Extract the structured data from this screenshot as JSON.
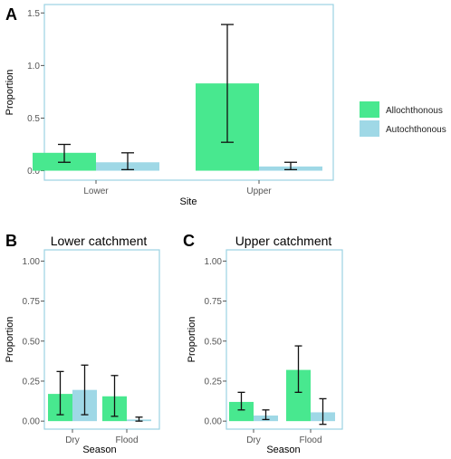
{
  "colors": {
    "allochthonous": "#48e88f",
    "autochthonous": "#9fd8e6",
    "frame": "#9bd3e2",
    "errorbar": "#111111"
  },
  "legend": {
    "items": [
      {
        "label": "Allochthonous",
        "color": "#48e88f"
      },
      {
        "label": "Autochthonous",
        "color": "#9fd8e6"
      }
    ]
  },
  "chart_data": [
    {
      "panel": "A",
      "type": "bar",
      "title": "",
      "xlabel": "Site",
      "ylabel": "Proportion",
      "ylim": [
        -0.09,
        1.58
      ],
      "yticks": [
        0.0,
        0.5,
        1.0,
        1.5
      ],
      "ytick_labels": [
        "0.0",
        "0.5",
        "1.0",
        "1.5"
      ],
      "categories": [
        "Lower",
        "Upper"
      ],
      "series": [
        {
          "name": "Allochthonous",
          "values": [
            0.17,
            0.83
          ],
          "err_low": [
            0.08,
            0.27
          ],
          "err_high": [
            0.25,
            1.39
          ]
        },
        {
          "name": "Autochthonous",
          "values": [
            0.08,
            0.04
          ],
          "err_low": [
            0.01,
            0.01
          ],
          "err_high": [
            0.17,
            0.08
          ]
        }
      ],
      "grid": false,
      "legend_position": "right"
    },
    {
      "panel": "B",
      "type": "bar",
      "title": "Lower catchment",
      "xlabel": "Season",
      "ylabel": "Proportion",
      "ylim": [
        -0.05,
        1.07
      ],
      "yticks": [
        0.0,
        0.25,
        0.5,
        0.75,
        1.0
      ],
      "ytick_labels": [
        "0.00",
        "0.25",
        "0.50",
        "0.75",
        "1.00"
      ],
      "categories": [
        "Dry",
        "Flood"
      ],
      "series": [
        {
          "name": "Allochthonous",
          "values": [
            0.17,
            0.155
          ],
          "err_low": [
            0.04,
            0.03
          ],
          "err_high": [
            0.31,
            0.285
          ]
        },
        {
          "name": "Autochthonous",
          "values": [
            0.195,
            0.01
          ],
          "err_low": [
            0.04,
            0.0
          ],
          "err_high": [
            0.35,
            0.025
          ]
        }
      ],
      "grid": false
    },
    {
      "panel": "C",
      "type": "bar",
      "title": "Upper catchment",
      "xlabel": "Season",
      "ylabel": "Proportion",
      "ylim": [
        -0.05,
        1.07
      ],
      "yticks": [
        0.0,
        0.25,
        0.5,
        0.75,
        1.0
      ],
      "ytick_labels": [
        "0.00",
        "0.25",
        "0.50",
        "0.75",
        "1.00"
      ],
      "categories": [
        "Dry",
        "Flood"
      ],
      "series": [
        {
          "name": "Allochthonous",
          "values": [
            0.12,
            0.32
          ],
          "err_low": [
            0.07,
            0.18
          ],
          "err_high": [
            0.18,
            0.47
          ]
        },
        {
          "name": "Autochthonous",
          "values": [
            0.035,
            0.055
          ],
          "err_low": [
            0.01,
            -0.02
          ],
          "err_high": [
            0.07,
            0.14
          ]
        }
      ],
      "grid": false
    }
  ]
}
